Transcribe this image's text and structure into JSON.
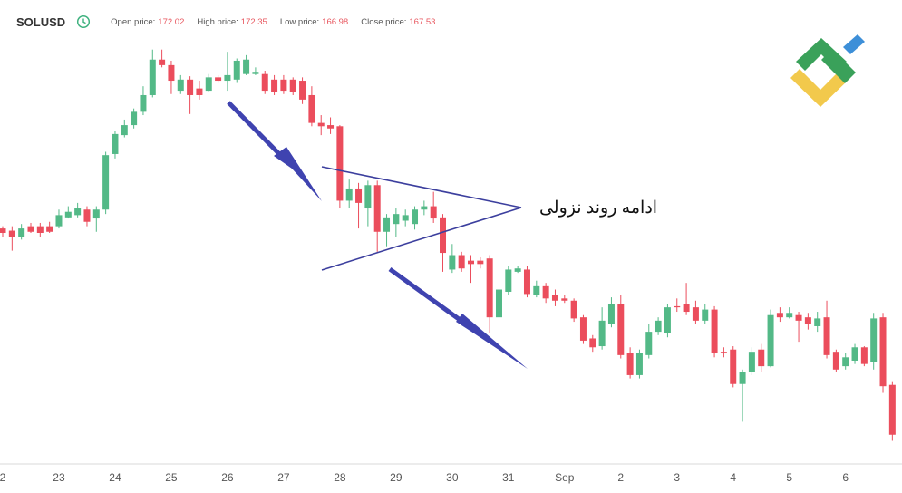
{
  "chart_data": {
    "type": "candlestick",
    "symbol": "SOLUSD",
    "header_labels": {
      "open": "Open price:",
      "high": "High price:",
      "low": "Low price:",
      "close": "Close price:"
    },
    "annotation": "ادامه روند نزولی",
    "x_labels": [
      "2",
      "23",
      "24",
      "25",
      "26",
      "27",
      "28",
      "29",
      "30",
      "31",
      "Sep",
      "2",
      "3",
      "4",
      "5",
      "6"
    ],
    "up_color": "#53b987",
    "down_color": "#eb4d5c",
    "ylim": [
      164.9,
      203.4
    ],
    "open": [
      186.1,
      185.9,
      185.3,
      186.3,
      186.3,
      186.3,
      186.3,
      187.1,
      187.3,
      187.8,
      187.0,
      187.8,
      192.8,
      194.5,
      195.4,
      196.6,
      198.1,
      201.3,
      200.8,
      198.5,
      199.5,
      198.7,
      198.5,
      199.7,
      199.4,
      199.5,
      200.0,
      200.0,
      200.0,
      199.5,
      199.5,
      199.5,
      199.4,
      198.1,
      195.6,
      195.4,
      195.3,
      188.6,
      189.7,
      187.9,
      190.0,
      185.8,
      186.5,
      186.8,
      186.5,
      187.8,
      188.1,
      187.1,
      182.4,
      183.7,
      183.2,
      183.2,
      183.4,
      178.1,
      180.4,
      182.2,
      182.4,
      180.1,
      180.9,
      180.1,
      179.8,
      179.6,
      178.1,
      176.2,
      175.5,
      177.5,
      179.3,
      174.9,
      172.9,
      174.7,
      176.8,
      176.7,
      179.1,
      179.3,
      179.0,
      177.8,
      178.8,
      175.0,
      175.2,
      172.1,
      173.2,
      175.2,
      173.7,
      178.5,
      178.1,
      178.3,
      178.1,
      177.3,
      178.1,
      175.0,
      173.7,
      174.2,
      175.4,
      174.1,
      178.1,
      172.02
    ],
    "high": [
      186.3,
      186.3,
      186.5,
      186.6,
      186.6,
      186.7,
      187.8,
      188.1,
      188.4,
      188.1,
      188.1,
      193.0,
      194.9,
      195.9,
      196.9,
      198.9,
      202.2,
      202.2,
      201.2,
      199.9,
      199.8,
      199.4,
      200.0,
      199.9,
      202.0,
      201.4,
      201.7,
      200.6,
      200.3,
      199.9,
      199.9,
      199.7,
      199.7,
      198.9,
      196.3,
      196.1,
      195.4,
      190.5,
      190.2,
      190.4,
      190.4,
      187.4,
      187.9,
      187.8,
      188.1,
      188.6,
      189.4,
      187.4,
      184.7,
      184.0,
      183.7,
      183.5,
      183.7,
      180.9,
      182.7,
      182.7,
      182.7,
      181.4,
      181.2,
      180.6,
      180.1,
      179.8,
      178.3,
      176.5,
      179.0,
      179.9,
      180.1,
      175.4,
      175.2,
      177.5,
      178.1,
      179.3,
      179.8,
      181.2,
      179.6,
      179.3,
      179.1,
      175.4,
      175.5,
      173.4,
      175.4,
      175.7,
      178.8,
      179.0,
      179.0,
      178.6,
      178.5,
      178.6,
      179.6,
      175.2,
      174.9,
      175.7,
      175.5,
      178.5,
      178.5,
      172.35
    ],
    "low": [
      185.3,
      184.1,
      185.1,
      185.7,
      185.3,
      185.7,
      186.1,
      187.0,
      187.1,
      186.3,
      185.8,
      187.4,
      192.4,
      194.3,
      195.1,
      196.3,
      197.9,
      200.6,
      198.2,
      198.2,
      196.4,
      197.7,
      198.4,
      199.2,
      198.5,
      199.2,
      199.9,
      199.9,
      198.2,
      198.1,
      198.2,
      198.1,
      197.3,
      195.3,
      194.5,
      194.6,
      187.9,
      187.9,
      186.1,
      186.3,
      184.0,
      184.5,
      185.3,
      186.3,
      186.0,
      187.3,
      186.6,
      182.2,
      182.1,
      182.2,
      181.2,
      182.5,
      176.7,
      177.7,
      180.1,
      182.1,
      179.9,
      179.9,
      179.4,
      179.1,
      179.4,
      177.7,
      175.7,
      175.0,
      175.2,
      177.2,
      174.4,
      172.6,
      172.6,
      174.4,
      176.5,
      176.3,
      178.6,
      178.3,
      177.5,
      177.5,
      174.5,
      174.5,
      171.8,
      168.7,
      172.9,
      173.2,
      173.6,
      177.7,
      178.0,
      175.9,
      177.0,
      176.8,
      174.4,
      173.2,
      173.4,
      173.9,
      173.7,
      173.4,
      171.3,
      166.98
    ],
    "close": [
      185.7,
      185.3,
      186.1,
      185.8,
      185.7,
      185.8,
      187.3,
      187.6,
      187.9,
      186.7,
      187.8,
      192.7,
      194.6,
      195.4,
      196.6,
      198.1,
      201.3,
      200.8,
      199.4,
      199.5,
      198.1,
      198.1,
      199.7,
      199.4,
      199.9,
      201.2,
      201.3,
      200.2,
      198.5,
      198.4,
      198.5,
      198.4,
      197.7,
      195.6,
      195.3,
      195.1,
      188.6,
      189.7,
      188.4,
      190.0,
      185.8,
      187.1,
      187.4,
      187.3,
      187.8,
      188.1,
      187.0,
      183.9,
      183.7,
      182.5,
      182.9,
      182.9,
      178.1,
      180.6,
      182.4,
      182.5,
      180.2,
      180.9,
      179.8,
      179.6,
      179.6,
      178.0,
      176.0,
      175.4,
      177.8,
      179.3,
      174.7,
      172.9,
      174.9,
      176.8,
      177.8,
      179.0,
      179.0,
      178.6,
      177.8,
      178.8,
      174.9,
      174.9,
      172.1,
      173.2,
      175.0,
      173.7,
      178.3,
      178.1,
      178.5,
      177.8,
      177.5,
      178.0,
      174.7,
      173.4,
      174.5,
      175.4,
      173.9,
      178.0,
      171.9,
      167.53
    ]
  }
}
